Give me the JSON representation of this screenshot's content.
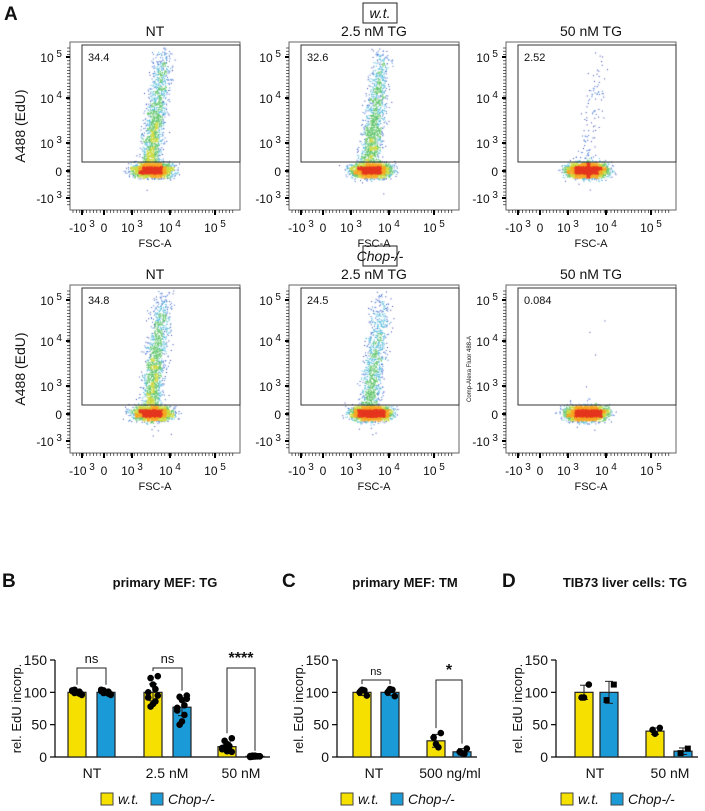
{
  "panel_a": {
    "letter": "A",
    "rows": [
      {
        "genotype": "w.t.",
        "plots": [
          {
            "title": "NT",
            "gate_pct": "34.4",
            "frac": 0.344
          },
          {
            "title": "2.5 nM TG",
            "gate_pct": "32.6",
            "frac": 0.326
          },
          {
            "title": "50 nM TG",
            "gate_pct": "2.52",
            "frac": 0.0252
          }
        ]
      },
      {
        "genotype": "Chop-/-",
        "plots": [
          {
            "title": "NT",
            "gate_pct": "34.8",
            "frac": 0.348
          },
          {
            "title": "2.5 nM TG",
            "gate_pct": "24.5",
            "frac": 0.245
          },
          {
            "title": "50 nM TG",
            "gate_pct": "0.084",
            "frac": 0.00084
          }
        ]
      }
    ],
    "ylabel": "A488 (EdU)",
    "ylabel_alt": "Comp-Alexa Fluor 488-A",
    "xlabel": "FSC-A",
    "yticks": [
      {
        "b": "10",
        "e": "5"
      },
      {
        "b": "10",
        "e": "4"
      },
      {
        "b": "10",
        "e": "3"
      },
      {
        "b": "0",
        "e": ""
      },
      {
        "b": "-10",
        "e": "3"
      }
    ],
    "xticks": [
      {
        "b": "-10",
        "e": "3"
      },
      {
        "b": "0",
        "e": ""
      },
      {
        "b": "10",
        "e": "3"
      },
      {
        "b": "10",
        "e": "4"
      },
      {
        "b": "10",
        "e": "5"
      }
    ]
  },
  "legend": {
    "wt": "w.t.",
    "ko": "Chop-/-"
  },
  "colors": {
    "wt": "#f5e000",
    "ko": "#1a9bd7"
  },
  "chart_data": [
    {
      "type": "bar",
      "letter": "B",
      "title": "primary MEF: TG",
      "ylabel": "rel. EdU incorp.",
      "ylim": [
        0,
        150
      ],
      "yticks": [
        0,
        50,
        100,
        150
      ],
      "categories": [
        "NT",
        "2.5 nM",
        "50 nM"
      ],
      "series": [
        {
          "name": "w.t.",
          "values": [
            100,
            100,
            16
          ],
          "sd": [
            3,
            13,
            7
          ],
          "points": [
            [
              97,
              99,
              100,
              101,
              102,
              103,
              98,
              100,
              104,
              96
            ],
            [
              125,
              122,
              112,
              105,
              100,
              92,
              86,
              82,
              78,
              95
            ],
            [
              29,
              25,
              20,
              17,
              14,
              12,
              10,
              9,
              15,
              8
            ]
          ]
        },
        {
          "name": "Chop-/-",
          "values": [
            100,
            77,
            1
          ],
          "sd": [
            3,
            13,
            1
          ],
          "points": [
            [
              97,
              99,
              100,
              101,
              102,
              104,
              98,
              100,
              103,
              96
            ],
            [
              95,
              93,
              88,
              80,
              76,
              72,
              65,
              55,
              50,
              90
            ],
            [
              1,
              0.5,
              2,
              1,
              0,
              1.5,
              1,
              0.8,
              2,
              1
            ]
          ]
        }
      ],
      "significance": [
        "ns",
        "ns",
        "****"
      ]
    },
    {
      "type": "bar",
      "letter": "C",
      "title": "primary MEF: TM",
      "ylabel": "rel. EdU incorp.",
      "ylim": [
        0,
        150
      ],
      "yticks": [
        0,
        50,
        100,
        150
      ],
      "categories": [
        "NT",
        "500 ng/ml"
      ],
      "series": [
        {
          "name": "w.t.",
          "values": [
            100,
            25
          ],
          "sd": [
            5,
            10
          ],
          "points": [
            [
              95,
              100,
              104,
              103
            ],
            [
              37,
              30,
              20,
              15
            ]
          ]
        },
        {
          "name": "Chop-/-",
          "values": [
            100,
            8
          ],
          "sd": [
            5,
            5
          ],
          "points": [
            [
              94,
              100,
              105,
              104
            ],
            [
              13,
              8,
              6,
              5
            ]
          ]
        }
      ],
      "significance": [
        "ns",
        "*"
      ]
    },
    {
      "type": "bar",
      "letter": "D",
      "title": "TIB73 liver cells: TG",
      "ylabel": "rel. EdU incorp.",
      "ylim": [
        0,
        150
      ],
      "yticks": [
        0,
        50,
        100,
        150
      ],
      "categories": [
        "NT",
        "50 nM"
      ],
      "series": [
        {
          "name": "w.t.",
          "values": [
            100,
            40
          ],
          "sd": [
            11,
            5
          ],
          "points": [
            [
              112,
              92,
              92
            ],
            [
              45,
              42,
              36
            ]
          ]
        },
        {
          "name": "Chop-/-",
          "values": [
            100,
            9
          ],
          "sd": [
            17,
            5
          ],
          "points": [
            [
              112,
              88
            ],
            [
              13,
              6
            ]
          ]
        }
      ],
      "significance": []
    }
  ]
}
